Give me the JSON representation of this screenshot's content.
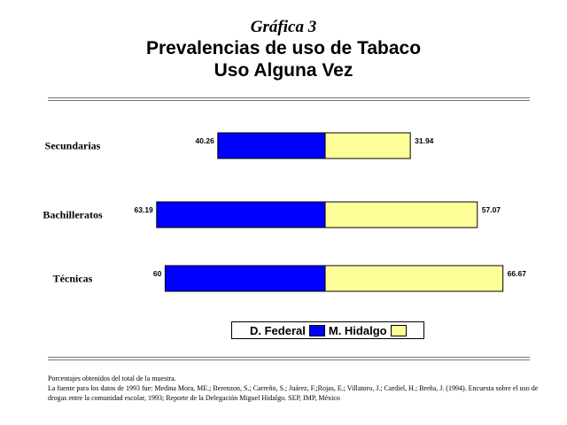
{
  "title": {
    "line1": "Gráfica 3",
    "line2": "Prevalencias de uso de Tabaco",
    "line3": "Uso Alguna Vez"
  },
  "colors": {
    "series1": "#0000ff",
    "series2": "#ffff99",
    "stroke": "#000000"
  },
  "chart_data": {
    "type": "bar",
    "orientation": "horizontal",
    "layout": "back-to-back",
    "categories": [
      "Secundarias",
      "Bachilleratos",
      "Técnicas"
    ],
    "series": [
      {
        "name": "D. Federal",
        "values": [
          40.26,
          63.19,
          60
        ],
        "labels": [
          "40.26",
          "63.19",
          "60"
        ]
      },
      {
        "name": "M. Hidalgo",
        "values": [
          31.94,
          57.07,
          66.67
        ],
        "labels": [
          "31.94",
          "57.07",
          "66.67"
        ]
      }
    ],
    "grid": false,
    "legend_position": "bottom"
  },
  "legend": {
    "items": [
      {
        "label": "D. Federal"
      },
      {
        "label": "M. Hidalgo"
      }
    ]
  },
  "notes": {
    "line1": "Porcentajes obtenidos del total de la muestra.",
    "line2": "La fuente para los datos de 1993 fue: Medina Mora, ME.; Berenzon, S.; Carreño, S.; Juárez, F.;Rojas, E.; Villatoro, J.; Cardiel, H.; Breña, J. (1994). Encuesta sobre el uso de drogas entre la comunidad escolar, 1993; Reporte de la Delegación Miguel Hidalgo. SEP, IMP, México"
  }
}
